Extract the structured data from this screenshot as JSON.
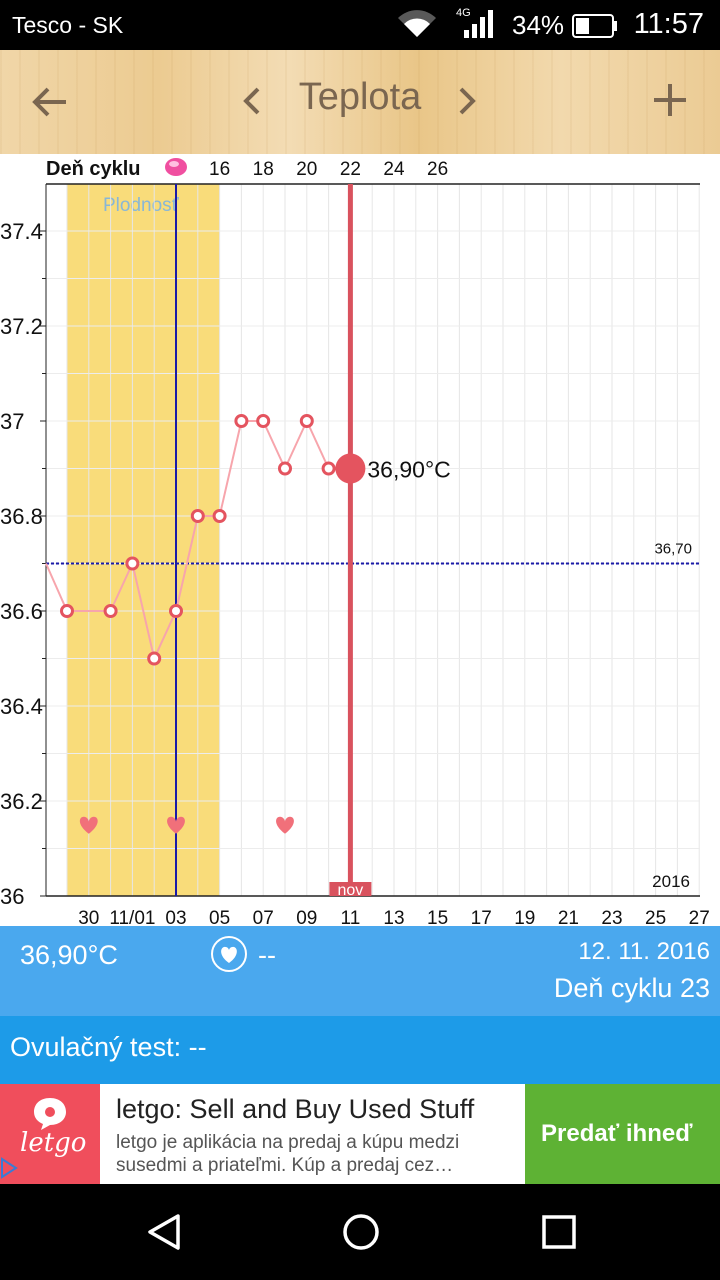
{
  "status_bar": {
    "carrier": "Tesco - SK",
    "network": "4G",
    "battery": "34%",
    "time": "11:57"
  },
  "app_bar": {
    "title": "Teplota",
    "back_icon": "arrow-left-icon",
    "prev_icon": "chevron-left-icon",
    "next_icon": "chevron-right-icon",
    "add_icon": "plus-icon"
  },
  "chart_data": {
    "type": "line",
    "cycle_label": "Deň cyklu",
    "cycle_ticks": [
      "16",
      "18",
      "20",
      "22",
      "24",
      "26"
    ],
    "fertility_label": "Plodnosť",
    "year_label": "2016",
    "month_marker": "nov",
    "x_ticks": [
      "30",
      "11/01",
      "03",
      "05",
      "07",
      "09",
      "11",
      "13",
      "15",
      "17",
      "19",
      "21",
      "23",
      "25",
      "27"
    ],
    "y_ticks": [
      "37.4",
      "37.2",
      "37",
      "36.8",
      "36.6",
      "36.4",
      "36.2",
      "36"
    ],
    "ylim": [
      36.0,
      37.5
    ],
    "coverline": {
      "value": 36.7,
      "label": "36,70"
    },
    "current": {
      "label": "36,90°C",
      "value": 36.9,
      "date_index": 13
    },
    "temperatures": [
      {
        "date_index": 0,
        "value": 36.6
      },
      {
        "date_index": 2,
        "value": 36.6
      },
      {
        "date_index": 3,
        "value": 36.7
      },
      {
        "date_index": 4,
        "value": 36.5
      },
      {
        "date_index": 5,
        "value": 36.6
      },
      {
        "date_index": 6,
        "value": 36.8
      },
      {
        "date_index": 7,
        "value": 36.8
      },
      {
        "date_index": 8,
        "value": 37.0
      },
      {
        "date_index": 9,
        "value": 37.0
      },
      {
        "date_index": 10,
        "value": 36.9
      },
      {
        "date_index": 11,
        "value": 37.0
      },
      {
        "date_index": 12,
        "value": 36.9
      },
      {
        "date_index": 13,
        "value": 36.9
      }
    ],
    "hearts_date_index": [
      1,
      5,
      10
    ],
    "fertile_window_date_index": [
      0,
      7
    ],
    "ovulation_date_index": 5,
    "colors": {
      "fertile": "#f9dc7a",
      "temperature": "#e4545f",
      "coverline": "#1a1aa8",
      "today_line": "#d9525e",
      "heart": "#f1707a",
      "ovulation_line": "#1a1aa8"
    }
  },
  "info": {
    "temperature": "36,90°C",
    "sex": "--",
    "date": "12. 11. 2016",
    "cycle_day": "Deň cyklu 23"
  },
  "ovulation_test": "Ovulačný test: --",
  "ad": {
    "logo_text": "letgo",
    "headline": "letgo: Sell and Buy Used Stuff",
    "body": "letgo je aplikácia na predaj a kúpu medzi susedmi a priateľmi. Kúp a predaj cez…",
    "cta": "Predať ihneď"
  }
}
